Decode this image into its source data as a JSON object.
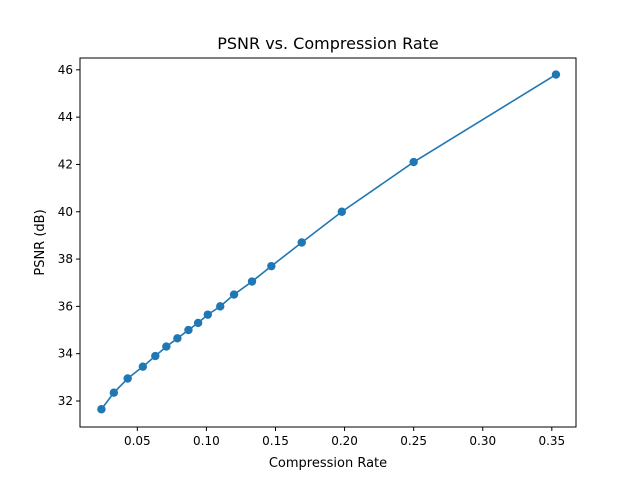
{
  "chart_data": {
    "type": "line",
    "title": "PSNR vs. Compression Rate",
    "xlabel": "Compression Rate",
    "ylabel": "PSNR (dB)",
    "xlim": [
      0.0085,
      0.3675
    ],
    "ylim": [
      30.9,
      46.5
    ],
    "xticks": [
      0.05,
      0.1,
      0.15,
      0.2,
      0.25,
      0.3,
      0.35
    ],
    "xtick_labels": [
      "0.05",
      "0.10",
      "0.15",
      "0.20",
      "0.25",
      "0.30",
      "0.35"
    ],
    "yticks": [
      32,
      34,
      36,
      38,
      40,
      42,
      44,
      46
    ],
    "ytick_labels": [
      "32",
      "34",
      "36",
      "38",
      "40",
      "42",
      "44",
      "46"
    ],
    "grid": false,
    "color": "#1f77b4",
    "series": [
      {
        "x": [
          0.024,
          0.033,
          0.043,
          0.054,
          0.063,
          0.071,
          0.079,
          0.087,
          0.094,
          0.101,
          0.11,
          0.12,
          0.133,
          0.147,
          0.169,
          0.198,
          0.25,
          0.353
        ],
        "y": [
          31.65,
          32.35,
          32.95,
          33.45,
          33.9,
          34.3,
          34.65,
          35.0,
          35.3,
          35.65,
          36.0,
          36.5,
          37.05,
          37.7,
          38.7,
          40.0,
          42.1,
          45.8
        ]
      }
    ]
  }
}
